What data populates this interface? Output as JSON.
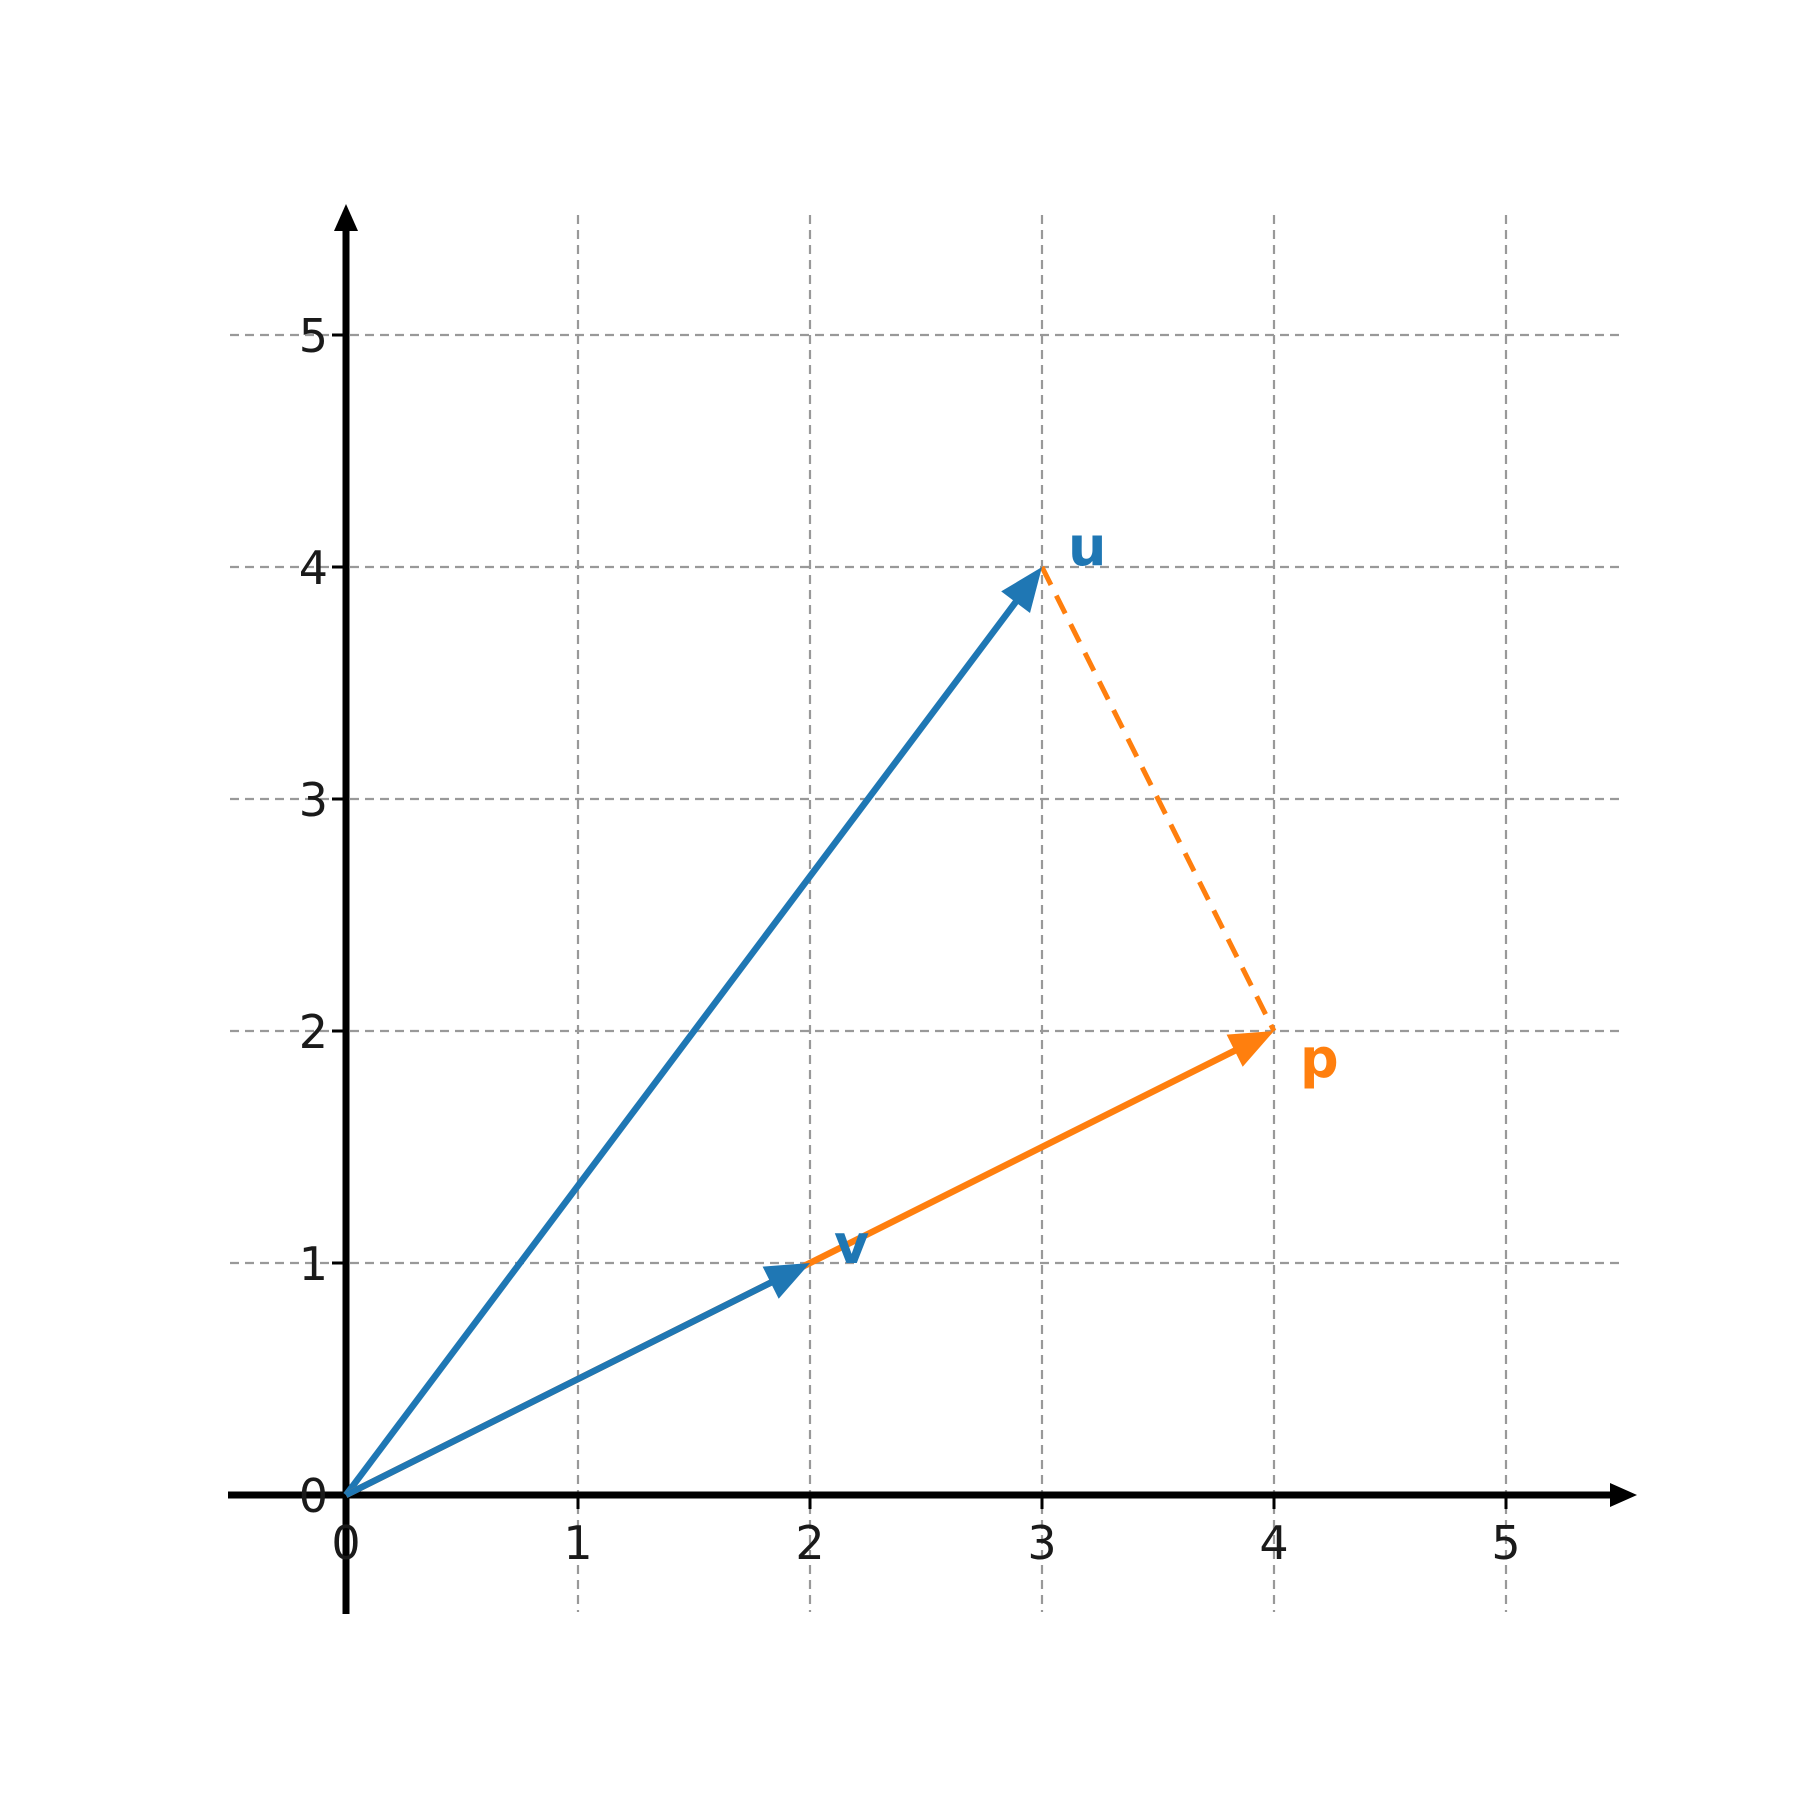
{
  "chart_data": {
    "type": "vector-diagram",
    "xlim": [
      -0.5,
      5.5
    ],
    "ylim": [
      -0.5,
      5.5
    ],
    "x_ticks": [
      0,
      1,
      2,
      3,
      4,
      5
    ],
    "y_ticks": [
      0,
      1,
      2,
      3,
      4,
      5
    ],
    "x_tick_labels": [
      "0",
      "1",
      "2",
      "3",
      "4",
      "5"
    ],
    "y_tick_labels": [
      "0",
      "1",
      "2",
      "3",
      "4",
      "5"
    ],
    "grid": true,
    "vectors": [
      {
        "name": "u",
        "label": "u",
        "from": [
          0,
          0
        ],
        "to": [
          3,
          4
        ],
        "color": "#1f77b4"
      },
      {
        "name": "p",
        "label": "p",
        "from": [
          0,
          0
        ],
        "to": [
          4,
          2
        ],
        "color": "#ff7f0e"
      },
      {
        "name": "v",
        "label": "v",
        "from": [
          0,
          0
        ],
        "to": [
          2,
          1
        ],
        "color": "#1f77b4"
      }
    ],
    "projection_line": {
      "from": [
        3,
        4
      ],
      "to": [
        4,
        2
      ],
      "color": "#ff7f0e",
      "style": "dashed"
    }
  },
  "colors": {
    "axis": "#000000",
    "grid": "#999999",
    "u": "#1f77b4",
    "v": "#1f77b4",
    "p": "#ff7f0e"
  }
}
